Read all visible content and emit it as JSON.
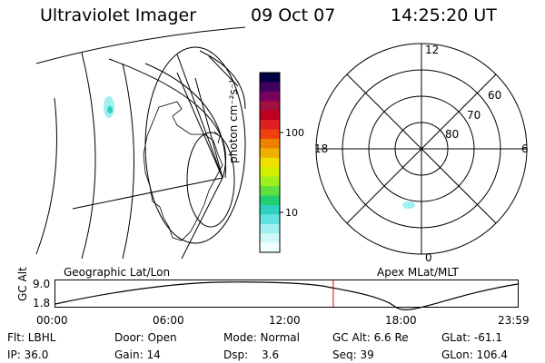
{
  "header": {
    "title": "Ultraviolet Imager",
    "date": "09 Oct 07",
    "time": "14:25:20 UT"
  },
  "colorbar": {
    "label": "photon cm⁻²s⁻¹",
    "ticks": [
      "100",
      "10"
    ],
    "colors": [
      "#000040",
      "#400060",
      "#7a0060",
      "#a01040",
      "#c00020",
      "#e02020",
      "#f04010",
      "#f08000",
      "#f0b000",
      "#f0e000",
      "#d0f000",
      "#a0f020",
      "#60e040",
      "#20d070",
      "#30d0c0",
      "#60e0e0",
      "#a0f0f0",
      "#d0f8f8",
      "#f0ffff"
    ]
  },
  "polar_plot": {
    "mlt_labels": [
      "12",
      "18",
      "6",
      "0"
    ],
    "lat_labels": [
      "60",
      "70",
      "80"
    ]
  },
  "timeline": {
    "left_label": "Geographic Lat/Lon",
    "right_label": "Apex MLat/MLT",
    "y_axis_label": "GC Alt",
    "y_top": "9.0",
    "y_bottom": "1.8",
    "x_ticks": [
      "00:00",
      "06:00",
      "12:00",
      "18:00",
      "23:59"
    ],
    "current_time_fraction": 0.601,
    "marker_color": "#e00000"
  },
  "info": {
    "flt": "Flt: LBHL",
    "door": "Door: Open",
    "mode": "Mode: Normal",
    "gc_alt": "GC Alt: 6.6 Re",
    "glat": "GLat: -61.1",
    "ip": "IP: 36.0",
    "gain": "Gain: 14",
    "dsp_label": "Dsp:",
    "dsp_value": "3.6",
    "seq": "Seq: 39",
    "glon": "GLon: 106.4"
  }
}
